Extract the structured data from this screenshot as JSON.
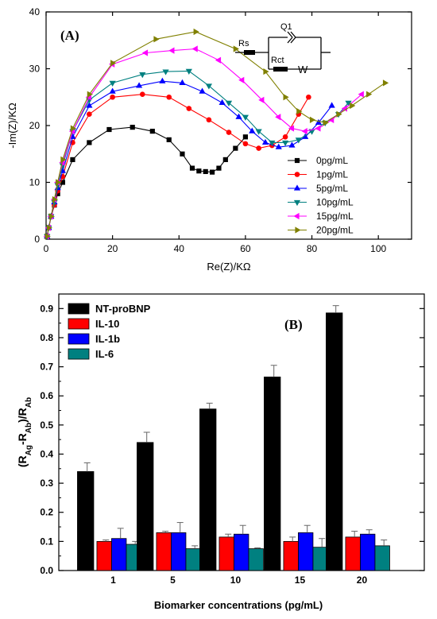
{
  "chart_data": [
    {
      "type": "scatter",
      "panel_label": "(A)",
      "xlabel": "Re(Z)/KΩ",
      "ylabel": "-Im(Z)/KΩ",
      "xlim": [
        0,
        110
      ],
      "ylim": [
        0,
        40
      ],
      "xticks": [
        "0",
        "20",
        "40",
        "60",
        "80",
        "100"
      ],
      "yticks": [
        "0",
        "10",
        "20",
        "30",
        "40"
      ],
      "legend_position": "right",
      "series": [
        {
          "name": "0pg/mL",
          "color": "#000000",
          "marker": "square",
          "points": [
            [
              0.3,
              0.5
            ],
            [
              0.8,
              2
            ],
            [
              1.5,
              4
            ],
            [
              2.5,
              6
            ],
            [
              3.5,
              8
            ],
            [
              5,
              10
            ],
            [
              8,
              14
            ],
            [
              13,
              17
            ],
            [
              19,
              19.3
            ],
            [
              26,
              19.7
            ],
            [
              32,
              19
            ],
            [
              37,
              17.5
            ],
            [
              41,
              15
            ],
            [
              44,
              12.5
            ],
            [
              46,
              12
            ],
            [
              48,
              11.9
            ],
            [
              50,
              11.8
            ],
            [
              52,
              12.5
            ],
            [
              54,
              14
            ],
            [
              57,
              16
            ],
            [
              60,
              18
            ]
          ]
        },
        {
          "name": "1pg/mL",
          "color": "#ff0000",
          "marker": "circle",
          "points": [
            [
              0.3,
              0.5
            ],
            [
              0.8,
              2
            ],
            [
              1.5,
              4
            ],
            [
              2.5,
              6
            ],
            [
              3.5,
              8.5
            ],
            [
              5,
              11
            ],
            [
              8,
              17
            ],
            [
              13,
              22
            ],
            [
              20,
              25
            ],
            [
              29,
              25.5
            ],
            [
              37,
              25
            ],
            [
              43,
              23
            ],
            [
              49,
              21
            ],
            [
              55,
              18.8
            ],
            [
              60,
              16.8
            ],
            [
              64,
              16
            ],
            [
              68,
              16.5
            ],
            [
              72,
              18
            ],
            [
              76,
              22
            ],
            [
              79,
              25
            ]
          ]
        },
        {
          "name": "5pg/mL",
          "color": "#0000ff",
          "marker": "triangle-up",
          "points": [
            [
              0.3,
              0.5
            ],
            [
              0.8,
              2
            ],
            [
              1.5,
              4
            ],
            [
              2.5,
              6.5
            ],
            [
              3.5,
              9
            ],
            [
              5,
              12
            ],
            [
              8,
              18
            ],
            [
              13,
              23.5
            ],
            [
              20,
              26
            ],
            [
              28,
              27
            ],
            [
              35,
              27.8
            ],
            [
              41,
              27.5
            ],
            [
              47,
              26
            ],
            [
              53,
              24
            ],
            [
              58,
              21.5
            ],
            [
              62,
              19
            ],
            [
              66,
              17
            ],
            [
              70,
              16.2
            ],
            [
              74,
              16.5
            ],
            [
              78,
              18
            ],
            [
              82,
              20.5
            ],
            [
              86,
              23.5
            ]
          ]
        },
        {
          "name": "10pg/mL",
          "color": "#008080",
          "marker": "triangle-down",
          "points": [
            [
              0.3,
              0.5
            ],
            [
              0.8,
              2
            ],
            [
              1.5,
              4
            ],
            [
              2.5,
              6.5
            ],
            [
              3.5,
              9.5
            ],
            [
              5,
              13
            ],
            [
              8,
              19
            ],
            [
              13,
              24.5
            ],
            [
              20,
              27.5
            ],
            [
              29,
              29
            ],
            [
              36,
              29.5
            ],
            [
              43,
              29.6
            ],
            [
              49,
              27
            ],
            [
              55,
              24
            ],
            [
              60,
              21.5
            ],
            [
              64,
              19
            ],
            [
              68,
              17
            ],
            [
              72,
              17
            ],
            [
              76,
              17.5
            ],
            [
              80,
              19
            ],
            [
              84,
              20.5
            ],
            [
              88,
              22
            ],
            [
              91,
              24
            ]
          ]
        },
        {
          "name": "15pg/mL",
          "color": "#ff00ff",
          "marker": "triangle-left",
          "points": [
            [
              0.3,
              0.5
            ],
            [
              0.8,
              2
            ],
            [
              1.5,
              4
            ],
            [
              2.5,
              7
            ],
            [
              3.5,
              10
            ],
            [
              5,
              13.5
            ],
            [
              8,
              19
            ],
            [
              13,
              25
            ],
            [
              20,
              30.8
            ],
            [
              30,
              32.8
            ],
            [
              38,
              33.2
            ],
            [
              45,
              33.5
            ],
            [
              52,
              31.5
            ],
            [
              59,
              28
            ],
            [
              65,
              24.5
            ],
            [
              70,
              21.5
            ],
            [
              74,
              19.5
            ],
            [
              78,
              19
            ],
            [
              82,
              19.5
            ],
            [
              86,
              21
            ],
            [
              90,
              23
            ],
            [
              95,
              25.5
            ]
          ]
        },
        {
          "name": "20pg/mL",
          "color": "#808000",
          "marker": "triangle-right",
          "points": [
            [
              0.3,
              0.5
            ],
            [
              0.8,
              2
            ],
            [
              1.5,
              4
            ],
            [
              2.5,
              7
            ],
            [
              3.5,
              10
            ],
            [
              5,
              14
            ],
            [
              8,
              19.5
            ],
            [
              13,
              25.5
            ],
            [
              20,
              31
            ],
            [
              33,
              35.2
            ],
            [
              45,
              36.5
            ],
            [
              57,
              33.5
            ],
            [
              66,
              29.5
            ],
            [
              72,
              25
            ],
            [
              76,
              22.5
            ],
            [
              80,
              21
            ],
            [
              84,
              20.5
            ],
            [
              88,
              22
            ],
            [
              92,
              23.5
            ],
            [
              97,
              25.5
            ],
            [
              102,
              27.5
            ]
          ]
        }
      ],
      "inset_circuit_labels": [
        "Q1",
        "Rs",
        "Rct",
        "W"
      ]
    },
    {
      "type": "bar",
      "panel_label": "(B)",
      "xlabel": "Biomarker concentrations (pg/mL)",
      "ylabel": "(RAg-RAb)/RAb",
      "ylim": [
        0,
        0.95
      ],
      "yticks": [
        "0.0",
        "0.1",
        "0.2",
        "0.3",
        "0.4",
        "0.5",
        "0.6",
        "0.7",
        "0.8",
        "0.9"
      ],
      "categories": [
        "1",
        "5",
        "10",
        "15",
        "20"
      ],
      "legend_position": "top-left",
      "series": [
        {
          "name": "NT-proBNP",
          "color": "#000000",
          "values": [
            0.34,
            0.44,
            0.555,
            0.665,
            0.885
          ],
          "errors": [
            0.03,
            0.035,
            0.02,
            0.04,
            0.025
          ]
        },
        {
          "name": "IL-10",
          "color": "#ff0000",
          "values": [
            0.1,
            0.13,
            0.115,
            0.1,
            0.115
          ],
          "errors": [
            0.005,
            0.005,
            0.01,
            0.015,
            0.02
          ]
        },
        {
          "name": "IL-1b",
          "color": "#0000ff",
          "values": [
            0.11,
            0.13,
            0.125,
            0.13,
            0.125
          ],
          "errors": [
            0.035,
            0.035,
            0.03,
            0.025,
            0.015
          ]
        },
        {
          "name": "IL-6",
          "color": "#008080",
          "values": [
            0.09,
            0.075,
            0.075,
            0.08,
            0.085
          ],
          "errors": [
            0.01,
            0.01,
            0.003,
            0.03,
            0.02
          ]
        }
      ]
    }
  ]
}
